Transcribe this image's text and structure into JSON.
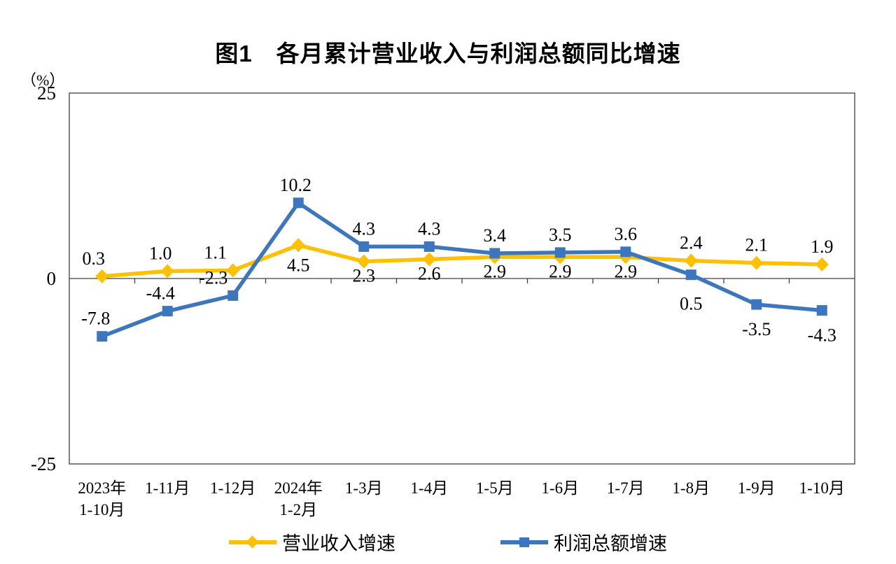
{
  "chart_data": {
    "type": "line",
    "title": "图1　各月累计营业收入与利润总额同比增速",
    "unit": "（%）",
    "categories": [
      [
        "2023年",
        "1-10月"
      ],
      [
        "1-11月"
      ],
      [
        "1-12月"
      ],
      [
        "2024年",
        "1-2月"
      ],
      [
        "1-3月"
      ],
      [
        "1-4月"
      ],
      [
        "1-5月"
      ],
      [
        "1-6月"
      ],
      [
        "1-7月"
      ],
      [
        "1-8月"
      ],
      [
        "1-9月"
      ],
      [
        "1-10月"
      ]
    ],
    "ylim": [
      -25,
      25
    ],
    "yticks": [
      25,
      0,
      -25
    ],
    "grid": false,
    "legend_position": "bottom",
    "axis_color": "#595959",
    "zero_line_color": "#404040",
    "label_color": "#000000",
    "series": [
      {
        "name": "营业收入增速",
        "color": "#FFC000",
        "marker": "diamond",
        "values": [
          0.3,
          1.0,
          1.1,
          4.5,
          2.3,
          2.6,
          2.9,
          2.9,
          2.9,
          2.4,
          2.1,
          1.9
        ],
        "label_pos": [
          "above",
          "above",
          "above",
          "below",
          "below",
          "below",
          "below",
          "below",
          "below",
          "above",
          "above",
          "above"
        ],
        "label_dx": [
          -12,
          -10,
          -25,
          0,
          0,
          0,
          0,
          0,
          0,
          0,
          0,
          0
        ],
        "label_dy": [
          0,
          0,
          0,
          8,
          0,
          0,
          0,
          0,
          0,
          0,
          0,
          0
        ]
      },
      {
        "name": "利润总额增速",
        "color": "#3B76BE",
        "marker": "square",
        "values": [
          -7.8,
          -4.4,
          -2.3,
          10.2,
          4.3,
          4.3,
          3.4,
          3.5,
          3.6,
          0.5,
          -3.5,
          -4.3
        ],
        "label_pos": [
          "above",
          "above",
          "above",
          "above",
          "above",
          "above",
          "above",
          "above",
          "above",
          "below",
          "below",
          "below"
        ],
        "label_dx": [
          -9,
          -10,
          -28,
          -4,
          0,
          0,
          0,
          0,
          0,
          0,
          0,
          0
        ],
        "label_dy": [
          0,
          0,
          0,
          0,
          0,
          0,
          0,
          0,
          0,
          6,
          0,
          0
        ]
      }
    ]
  }
}
